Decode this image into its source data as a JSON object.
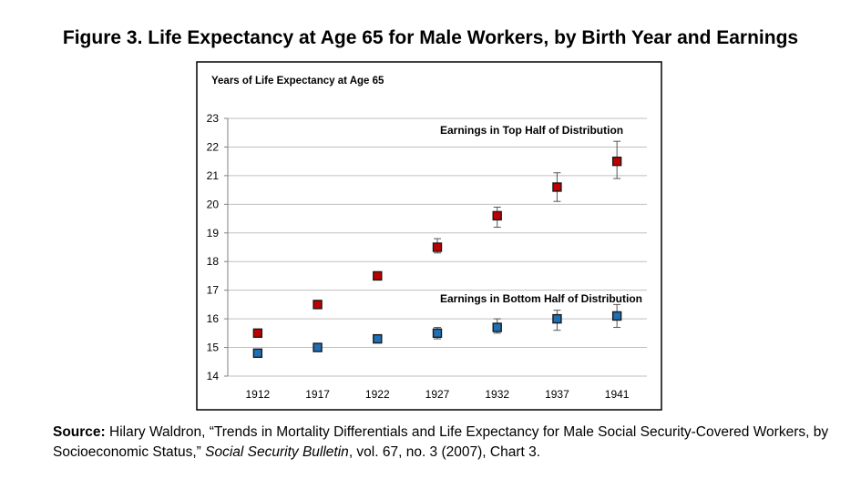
{
  "figure": {
    "title": "Figure 3. Life Expectancy at Age 65 for Male Workers, by Birth Year and Earnings"
  },
  "source": {
    "lead": "Source:",
    "text_before": " Hilary  Waldron, “Trends in Mortality Differentials  and Life Expectancy for Male Social Security-Covered Workers,  by Socioeconomic  Status,” ",
    "journal": "Social Security Bulletin",
    "text_after": ", vol. 67, no. 3 (2007), Chart 3."
  },
  "chart_data": {
    "type": "scatter",
    "title": "",
    "ylabel": "Years of Life Expectancy at Age 65",
    "xlabel": "",
    "categories": [
      "1912",
      "1917",
      "1922",
      "1927",
      "1932",
      "1937",
      "1941"
    ],
    "ylim": [
      14,
      23
    ],
    "yticks": [
      14,
      15,
      16,
      17,
      18,
      19,
      20,
      21,
      22,
      23
    ],
    "grid": true,
    "error_bars": true,
    "series": [
      {
        "name": "Earnings in Top Half of Distribution",
        "color": "#c00000",
        "marker": "square",
        "values": [
          15.5,
          16.5,
          17.5,
          18.5,
          19.6,
          20.6,
          21.5
        ],
        "err_low": [
          15.4,
          16.4,
          17.4,
          18.3,
          19.2,
          20.1,
          20.9
        ],
        "err_high": [
          15.6,
          16.6,
          17.6,
          18.8,
          19.9,
          21.1,
          22.2
        ]
      },
      {
        "name": "Earnings in Bottom Half of Distribution",
        "color": "#1f6fb4",
        "marker": "square",
        "values": [
          14.8,
          15.0,
          15.3,
          15.5,
          15.7,
          16.0,
          16.1
        ],
        "err_low": [
          14.7,
          14.9,
          15.2,
          15.3,
          15.5,
          15.6,
          15.7
        ],
        "err_high": [
          14.9,
          15.1,
          15.4,
          15.7,
          16.0,
          16.3,
          16.5
        ]
      }
    ]
  }
}
